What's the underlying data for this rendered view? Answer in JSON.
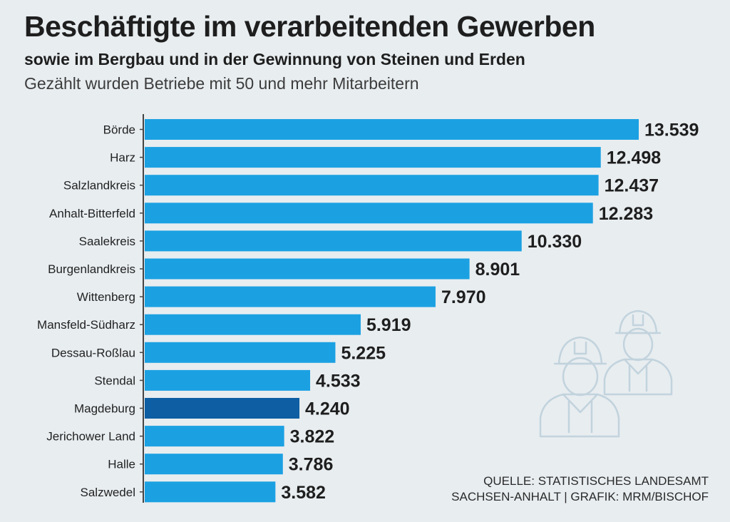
{
  "chart_data": {
    "type": "bar",
    "orientation": "horizontal",
    "title": "Beschäftigte im verarbeitenden Gewerben",
    "subtitle": "sowie im Bergbau und in der Gewinnung von Steinen und Erden",
    "note": "Gezählt wurden Betriebe mit 50 und mehr Mitarbeitern",
    "categories": [
      "Börde",
      "Harz",
      "Salzlandkreis",
      "Anhalt-Bitterfeld",
      "Saalekreis",
      "Burgenlandkreis",
      "Wittenberg",
      "Mansfeld-Südharz",
      "Dessau-Roßlau",
      "Stendal",
      "Magdeburg",
      "Jerichower Land",
      "Halle",
      "Salzwedel"
    ],
    "values": [
      13539,
      12498,
      12437,
      12283,
      10330,
      8901,
      7970,
      5919,
      5225,
      4533,
      4240,
      3822,
      3786,
      3582
    ],
    "value_labels": [
      "13.539",
      "12.498",
      "12.437",
      "12.283",
      "10.330",
      "8.901",
      "7.970",
      "5.919",
      "5.225",
      "4.533",
      "4.240",
      "3.822",
      "3.786",
      "3.582"
    ],
    "highlight": "Magdeburg",
    "xlim": [
      0,
      13539
    ],
    "grid": false
  },
  "colors": {
    "bar": "#1ba1e2",
    "highlight": "#0d5ea3",
    "axis": "#444444",
    "icon": "#c2d3dd"
  },
  "icons": [
    "worker-icon",
    "worker-icon"
  ],
  "source": {
    "line1": "QUELLE: STATISTISCHES LANDESAMT",
    "line2": "SACHSEN-ANHALT | GRAFIK: MRM/BISCHOF"
  }
}
